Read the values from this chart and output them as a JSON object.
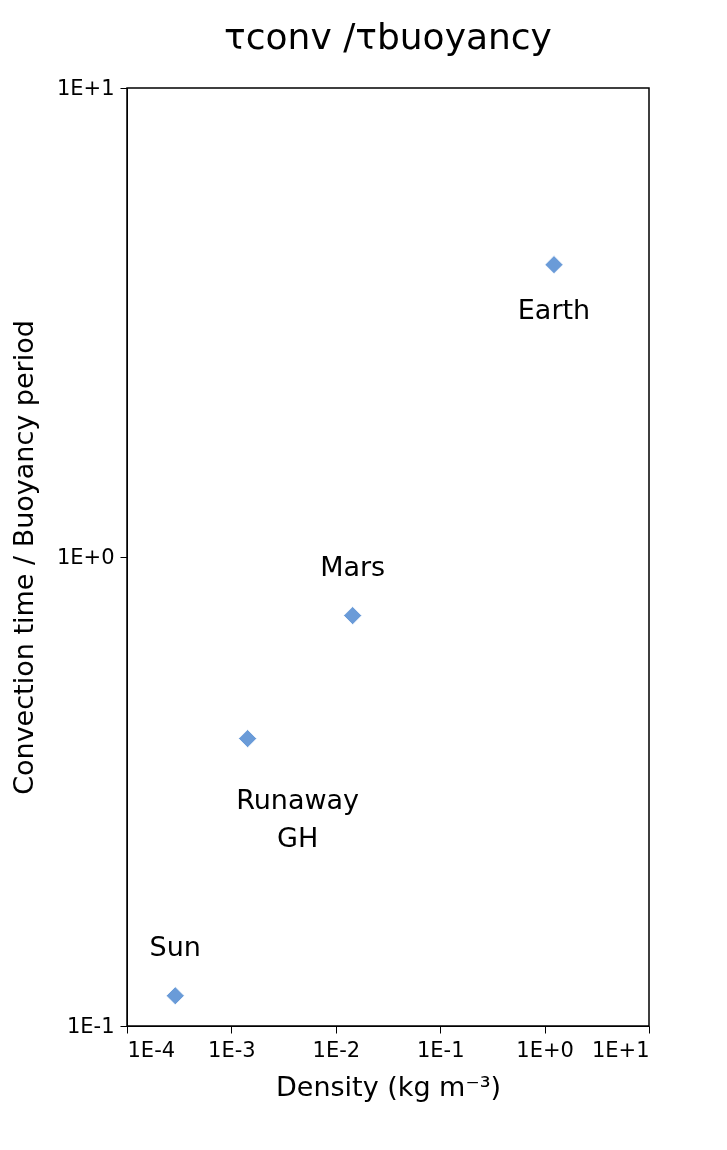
{
  "chart_data": {
    "type": "scatter",
    "title": "τconv /τbuoyancy",
    "xlabel": "Density (kg m⁻³)",
    "ylabel": "Convection time / Buoyancy period",
    "x": [
      0.00029,
      0.00143,
      0.0145,
      1.23
    ],
    "series": [
      {
        "color": "#6a9bd8",
        "values": [
          0.116,
          0.41,
          0.75,
          4.2
        ]
      }
    ],
    "log": "xy",
    "xlim": [
      0.0001,
      10
    ],
    "ylim": [
      0.1,
      10
    ],
    "xticks": [
      {
        "value": 0.0001,
        "label": "1E-4"
      },
      {
        "value": 0.001,
        "label": "1E-3"
      },
      {
        "value": 0.01,
        "label": "1E-2"
      },
      {
        "value": 0.1,
        "label": "1E-1"
      },
      {
        "value": 1,
        "label": "1E+0"
      },
      {
        "value": 10,
        "label": "1E+1"
      }
    ],
    "yticks": [
      {
        "value": 0.1,
        "label": "1E-1"
      },
      {
        "value": 1,
        "label": "1E+0"
      },
      {
        "value": 10,
        "label": "1E+1"
      }
    ],
    "annotations": [
      {
        "text": "Sun",
        "x": 0.00029,
        "y": 0.116
      },
      {
        "text": "Runaway\nGH",
        "x": 0.00143,
        "y": 0.41
      },
      {
        "text": "Mars",
        "x": 0.0145,
        "y": 0.75
      },
      {
        "text": "Earth",
        "x": 1.23,
        "y": 4.2
      }
    ],
    "marker": "diamond",
    "grid": false
  }
}
